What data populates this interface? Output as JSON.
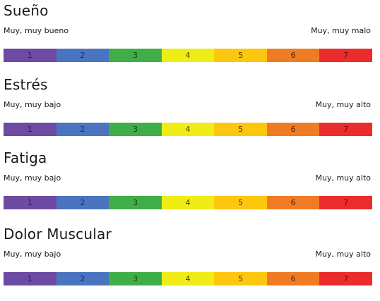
{
  "scale_colors": [
    "#6d4aa3",
    "#4a74c0",
    "#3fae49",
    "#f0ec16",
    "#fec70f",
    "#f07b25",
    "#ea2d2c"
  ],
  "scale_text_colors": [
    "#2b1a48",
    "#1b2c55",
    "#153d18",
    "#4a4400",
    "#4a3800",
    "#4a2000",
    "#5a0d0d"
  ],
  "sections": [
    {
      "title": "Sueño",
      "left_label": "Muy, muy bueno",
      "right_label": "Muy, muy malo",
      "values": [
        "1",
        "2",
        "3",
        "4",
        "5",
        "6",
        "7"
      ]
    },
    {
      "title": "Estrés",
      "left_label": "Muy, muy bajo",
      "right_label": "Muy, muy alto",
      "values": [
        "1",
        "2",
        "3",
        "4",
        "5",
        "6",
        "7"
      ]
    },
    {
      "title": "Fatiga",
      "left_label": "Muy, muy bajo",
      "right_label": "Muy, muy alto",
      "values": [
        "1",
        "2",
        "3",
        "4",
        "5",
        "6",
        "7"
      ]
    },
    {
      "title": "Dolor Muscular",
      "left_label": "Muy, muy bajo",
      "right_label": "Muy, muy alto",
      "values": [
        "1",
        "2",
        "3",
        "4",
        "5",
        "6",
        "7"
      ]
    }
  ]
}
